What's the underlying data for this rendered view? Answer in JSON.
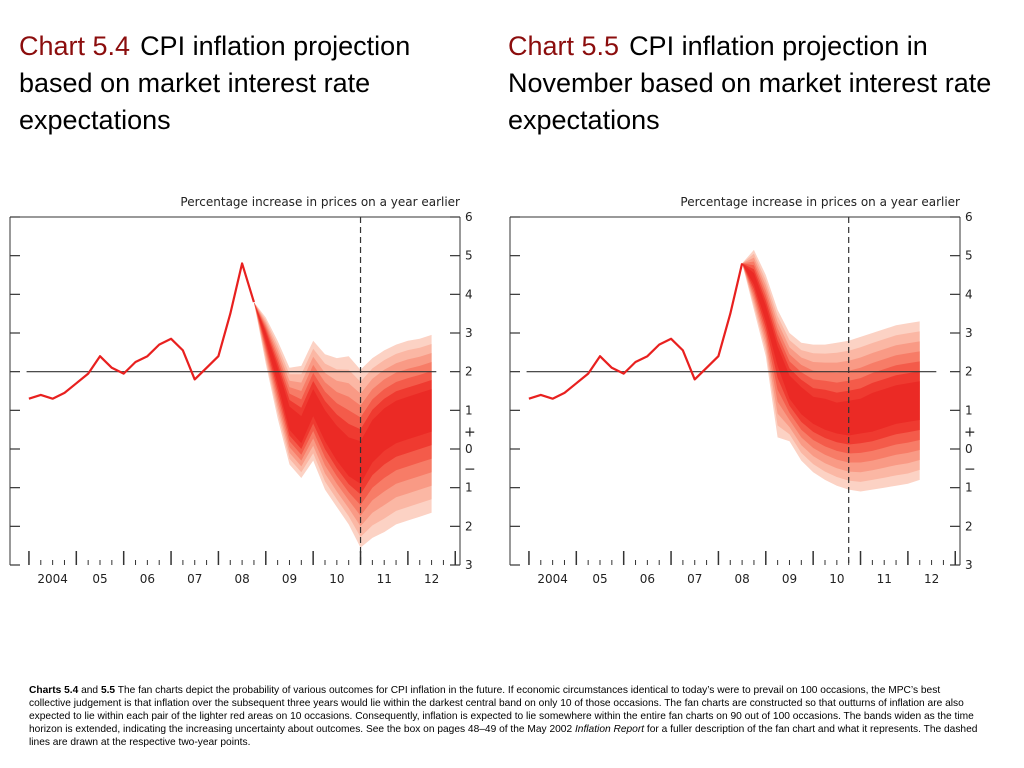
{
  "titles": [
    {
      "number": "Chart 5.4",
      "text": "CPI inflation projection based on market interest rate expectations"
    },
    {
      "number": "Chart 5.5",
      "text": "CPI inflation projection in November based on market interest rate expectations"
    }
  ],
  "colors": {
    "title_accent": "#8b0d0d",
    "history_line": "#e8201f",
    "fan_bands": [
      "#fcd2c4",
      "#fbb7a4",
      "#f99a85",
      "#f77c67",
      "#f45b4a",
      "#ef3a30",
      "#eb2a25"
    ]
  },
  "chart_data": [
    {
      "type": "area",
      "id": "chart-5-4",
      "subtitle": "Percentage increase in prices on a year earlier",
      "xlabel": "",
      "ylabel": "",
      "ylim": [
        -3,
        6
      ],
      "x_range": [
        2003.6,
        2013.1
      ],
      "x_tick_labels": [
        "2004",
        "05",
        "06",
        "07",
        "08",
        "09",
        "10",
        "11",
        "12"
      ],
      "x_tick_positions": [
        2004.5,
        2005.5,
        2006.5,
        2007.5,
        2008.5,
        2009.5,
        2010.5,
        2011.5,
        2012.5
      ],
      "y_tick_labels": [
        "6",
        "5",
        "4",
        "3",
        "2",
        "1",
        "0",
        "1",
        "2",
        "3"
      ],
      "y_tick_values": [
        6,
        5,
        4,
        3,
        2,
        1,
        0,
        -1,
        -2,
        -3
      ],
      "sign_labels": [
        "+",
        "−"
      ],
      "target_line": 2,
      "forecast_divider_x": 2011.0,
      "history": {
        "x": [
          2004.0,
          2004.25,
          2004.5,
          2004.75,
          2005.0,
          2005.25,
          2005.5,
          2005.75,
          2006.0,
          2006.25,
          2006.5,
          2006.75,
          2007.0,
          2007.25,
          2007.5,
          2007.75,
          2008.0,
          2008.25,
          2008.5,
          2008.75
        ],
        "y": [
          1.3,
          1.4,
          1.3,
          1.45,
          1.7,
          1.95,
          2.4,
          2.1,
          1.95,
          2.25,
          2.4,
          2.7,
          2.85,
          2.55,
          1.8,
          2.1,
          2.4,
          3.5,
          4.8,
          3.8
        ]
      },
      "fan": {
        "x": [
          2008.75,
          2009.0,
          2009.25,
          2009.5,
          2009.75,
          2010.0,
          2010.25,
          2010.5,
          2010.75,
          2011.0,
          2011.25,
          2011.5,
          2011.75,
          2012.0,
          2012.25,
          2012.5
        ],
        "central": [
          3.8,
          2.9,
          1.9,
          0.8,
          0.5,
          1.2,
          0.6,
          0.15,
          -0.2,
          -0.35,
          0.2,
          0.5,
          0.7,
          0.8,
          0.9,
          1.0
        ],
        "inner_half_width": [
          0.0,
          0.1,
          0.2,
          0.3,
          0.35,
          0.35,
          0.4,
          0.45,
          0.5,
          0.55,
          0.55,
          0.55,
          0.55,
          0.55,
          0.55,
          0.55
        ],
        "outer_upper": [
          3.8,
          3.4,
          2.8,
          2.1,
          2.15,
          2.8,
          2.45,
          2.35,
          2.4,
          2.05,
          2.35,
          2.55,
          2.7,
          2.8,
          2.85,
          2.95
        ],
        "outer_lower": [
          3.8,
          2.2,
          0.8,
          -0.4,
          -0.75,
          -0.3,
          -1.05,
          -1.5,
          -1.95,
          -2.55,
          -2.3,
          -2.15,
          -1.95,
          -1.85,
          -1.75,
          -1.65
        ]
      }
    },
    {
      "type": "area",
      "id": "chart-5-5",
      "subtitle": "Percentage increase in prices on a year earlier",
      "xlabel": "",
      "ylabel": "",
      "ylim": [
        -3,
        6
      ],
      "x_range": [
        2003.6,
        2013.1
      ],
      "x_tick_labels": [
        "2004",
        "05",
        "06",
        "07",
        "08",
        "09",
        "10",
        "11",
        "12"
      ],
      "x_tick_positions": [
        2004.5,
        2005.5,
        2006.5,
        2007.5,
        2008.5,
        2009.5,
        2010.5,
        2011.5,
        2012.5
      ],
      "y_tick_labels": [
        "6",
        "5",
        "4",
        "3",
        "2",
        "1",
        "0",
        "1",
        "2",
        "3"
      ],
      "y_tick_values": [
        6,
        5,
        4,
        3,
        2,
        1,
        0,
        -1,
        -2,
        -3
      ],
      "sign_labels": [
        "+",
        "−"
      ],
      "target_line": 2,
      "forecast_divider_x": 2010.75,
      "history": {
        "x": [
          2004.0,
          2004.25,
          2004.5,
          2004.75,
          2005.0,
          2005.25,
          2005.5,
          2005.75,
          2006.0,
          2006.25,
          2006.5,
          2006.75,
          2007.0,
          2007.25,
          2007.5,
          2007.75,
          2008.0,
          2008.25,
          2008.5
        ],
        "y": [
          1.3,
          1.4,
          1.3,
          1.45,
          1.7,
          1.95,
          2.4,
          2.1,
          1.95,
          2.25,
          2.4,
          2.7,
          2.85,
          2.55,
          1.8,
          2.1,
          2.4,
          3.5,
          4.8
        ]
      },
      "fan": {
        "x": [
          2008.5,
          2008.75,
          2009.0,
          2009.25,
          2009.5,
          2009.75,
          2010.0,
          2010.25,
          2010.5,
          2010.75,
          2011.0,
          2011.25,
          2011.5,
          2011.75,
          2012.0,
          2012.25
        ],
        "central": [
          4.8,
          4.4,
          3.5,
          2.4,
          1.6,
          1.25,
          1.0,
          0.9,
          0.8,
          0.8,
          0.85,
          0.95,
          1.05,
          1.15,
          1.2,
          1.25
        ],
        "inner_half_width": [
          0.0,
          0.15,
          0.2,
          0.25,
          0.3,
          0.35,
          0.35,
          0.4,
          0.4,
          0.45,
          0.45,
          0.5,
          0.5,
          0.5,
          0.5,
          0.5
        ],
        "outer_upper": [
          4.8,
          5.15,
          4.5,
          3.6,
          3.0,
          2.75,
          2.7,
          2.7,
          2.75,
          2.8,
          2.9,
          3.0,
          3.1,
          3.2,
          3.25,
          3.3
        ],
        "outer_lower": [
          4.8,
          3.6,
          2.4,
          0.3,
          0.2,
          -0.3,
          -0.6,
          -0.8,
          -0.95,
          -1.05,
          -1.1,
          -1.05,
          -1.0,
          -0.95,
          -0.9,
          -0.8
        ]
      }
    }
  ],
  "footnote": {
    "lead_bold_1": "Charts 5.4",
    "lead_and": " and ",
    "lead_bold_2": "5.5",
    "text_1": "  The fan charts depict the probability of various outcomes for CPI inflation in the future.  If economic circumstances identical to today’s were to prevail on 100 occasions, the MPC’s best collective judgement is that inflation over the subsequent three years would lie within the darkest central band on only 10 of those occasions.  The fan charts are constructed so that outturns of inflation are also expected to lie within each pair of the lighter red areas on 10 occasions.  Consequently, inflation is expected to lie somewhere within the entire fan charts on 90 out of 100 occasions.  The bands widen as the time horizon is extended, indicating the increasing uncertainty about outcomes.  See the box on pages 48–49 of the May 2002 ",
    "italic": "Inflation Report",
    "text_2": " for a fuller description of the fan chart and what it represents.  The dashed lines are drawn at the respective two-year points."
  }
}
